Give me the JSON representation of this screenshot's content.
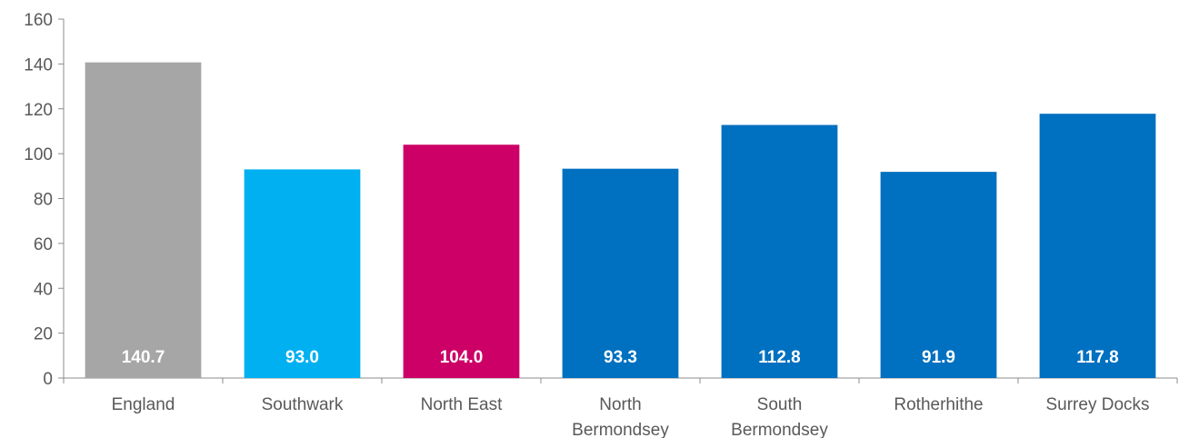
{
  "chart_data": {
    "type": "bar",
    "title": "",
    "xlabel": "",
    "ylabel": "",
    "ylim": [
      0,
      160
    ],
    "yticks": [
      0,
      20,
      40,
      60,
      80,
      100,
      120,
      140,
      160
    ],
    "grid": false,
    "legend": "none",
    "categories": [
      [
        "England"
      ],
      [
        "Southwark"
      ],
      [
        "North East"
      ],
      [
        "North",
        "Bermondsey"
      ],
      [
        "South",
        "Bermondsey"
      ],
      [
        "Rotherhithe"
      ],
      [
        "Surrey Docks"
      ]
    ],
    "values": [
      140.7,
      93.0,
      104.0,
      93.3,
      112.8,
      91.9,
      117.8
    ],
    "data_labels": [
      "140.7",
      "93.0",
      "104.0",
      "93.3",
      "112.8",
      "91.9",
      "117.8"
    ],
    "colors": [
      "#a6a6a6",
      "#00b0f0",
      "#cc0066",
      "#0070c0",
      "#0070c0",
      "#0070c0",
      "#0070c0"
    ]
  }
}
